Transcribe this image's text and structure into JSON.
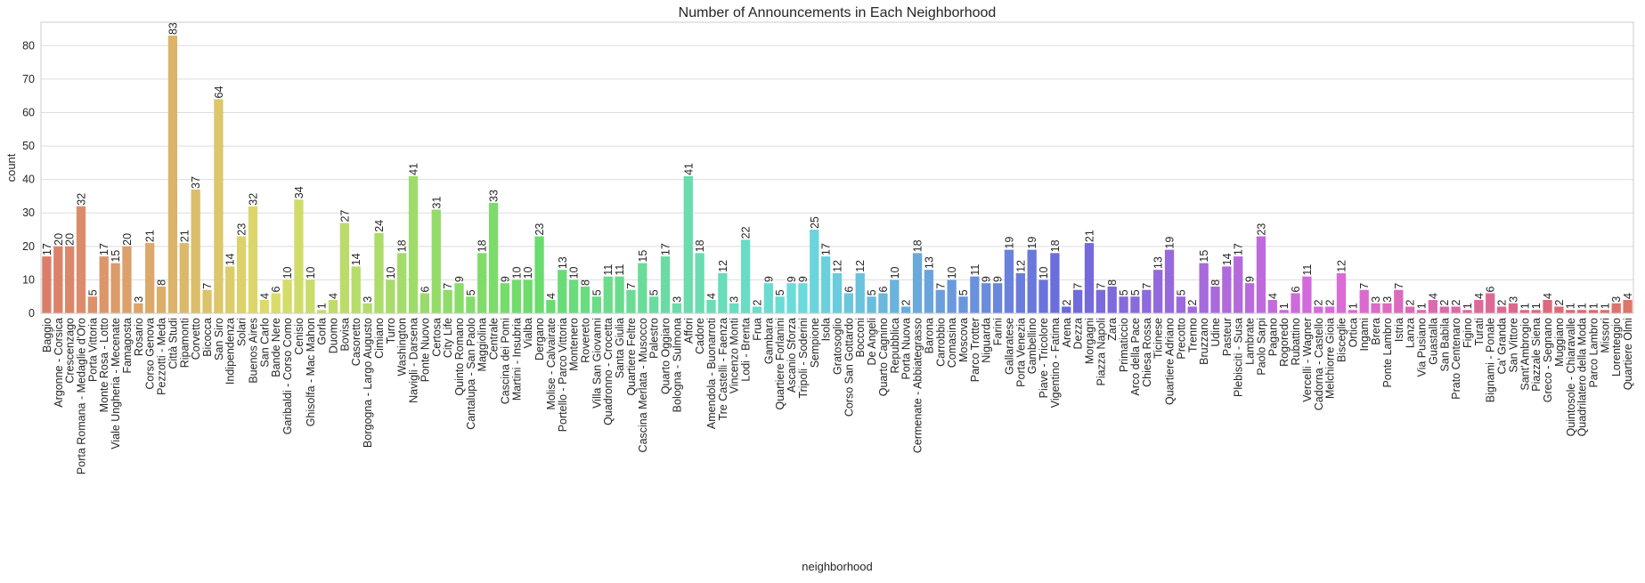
{
  "chart_data": {
    "type": "bar",
    "title": "Number of Announcements in Each Neighborhood",
    "xlabel": "neighborhood",
    "ylabel": "count",
    "ylim": [
      0,
      87
    ],
    "yticks": [
      0,
      10,
      20,
      30,
      40,
      50,
      60,
      70,
      80
    ],
    "grid": "horizontal",
    "style": "seaborn-whitegrid",
    "bar_labels": true,
    "colormap": "husl",
    "categories": [
      "Baggio",
      "Argonne - Corsica",
      "Crescenzago",
      "Porta Romana - Medaglie d'Oro",
      "Porta Vittoria",
      "Monte Rosa - Lotto",
      "Viale Ungheria - Mecenate",
      "Famagosta",
      "Rosario",
      "Corso Genova",
      "Pezzotti - Meda",
      "Città Studi",
      "Ripamonti",
      "Corvetto",
      "Bicocca",
      "San Siro",
      "Indipendenza",
      "Solari",
      "Buenos Aires",
      "San Carlo",
      "Bande Nere",
      "Garibaldi - Corso Como",
      "Cenisio",
      "Ghisolfa - Mac Mahon",
      "Gorla",
      "Duomo",
      "Bovisa",
      "Casoretto",
      "Borgogna - Largo Augusto",
      "Cimiano",
      "Turro",
      "Washington",
      "Navigli - Darsena",
      "Ponte Nuovo",
      "Certosa",
      "City Life",
      "Quinto Romano",
      "Cantalupa - San Paolo",
      "Maggiolina",
      "Centrale",
      "Cascina dei Pomi",
      "Martini - Insubria",
      "Vialba",
      "Dergano",
      "Molise - Calvairate",
      "Portello - Parco Vittoria",
      "Montenero",
      "Rovereto",
      "Villa San Giovanni",
      "Quadronno - Crocetta",
      "Santa Giulia",
      "Quartiere Feltre",
      "Cascina Merlata - Musocco",
      "Palestro",
      "Quarto Oggiaro",
      "Bologna - Sulmona",
      "Affori",
      "Cadore",
      "Amendola - Buonarroti",
      "Tre Castelli - Faenza",
      "Vincenzo Monti",
      "Lodi - Brenta",
      "Frua",
      "Gambara",
      "Quartiere Forlanini",
      "Ascanio Sforza",
      "Tripoli - Soderini",
      "Sempione",
      "Isola",
      "Gratosoglio",
      "Corso San Gottardo",
      "Bocconi",
      "De Angeli",
      "Quarto Cagnino",
      "Repubblica",
      "Porta Nuova",
      "Cermenate - Abbiategrasso",
      "Barona",
      "Carrobbio",
      "Comasina",
      "Moscova",
      "Parco Trotter",
      "Niguarda",
      "Farini",
      "Gallaratese",
      "Porta Venezia",
      "Gambellino",
      "Piave - Tricolore",
      "Vigentino - Fatima",
      "Arena",
      "Dezza",
      "Morgagni",
      "Piazza Napoli",
      "Zara",
      "Primaticcio",
      "Arco della Pace",
      "Chiesa Rossa",
      "Ticinese",
      "Quartiere Adriano",
      "Precotto",
      "Trenno",
      "Bruzzano",
      "Udine",
      "Pasteur",
      "Plebisciti - Susa",
      "Lambrate",
      "Paolo Sarpi",
      "Pagano",
      "Rogoredo",
      "Rubattino",
      "Vercelli - Wagner",
      "Cadorna - Castello",
      "Melchiorre Gioia",
      "Bisceglie",
      "Ortica",
      "Ingami",
      "Brera",
      "Ponte Lambro",
      "Istria",
      "Lanza",
      "Via Pusiano",
      "Guastalla",
      "San Babila",
      "Prato Centenaro",
      "Figino",
      "Turati",
      "Bignami - Ponale",
      "Ca' Granda",
      "San Vittore",
      "Sant'Ambrogio",
      "Piazzale Siena",
      "Greco - Segnano",
      "Muggiano",
      "Quintosole - Chiaravalle",
      "Quadrilatero della Moda",
      "Parco Lambro",
      "Missori",
      "Lorenteggio",
      "Quartiere Olmi"
    ],
    "values": [
      17,
      20,
      20,
      32,
      5,
      17,
      15,
      20,
      3,
      21,
      8,
      83,
      21,
      37,
      7,
      64,
      14,
      23,
      32,
      4,
      6,
      10,
      34,
      10,
      1,
      4,
      27,
      14,
      3,
      24,
      10,
      18,
      41,
      6,
      31,
      7,
      9,
      5,
      18,
      33,
      9,
      10,
      10,
      23,
      4,
      13,
      10,
      8,
      5,
      11,
      11,
      7,
      15,
      5,
      17,
      3,
      41,
      18,
      4,
      12,
      3,
      22,
      2,
      9,
      5,
      9,
      9,
      25,
      17,
      12,
      6,
      12,
      5,
      6,
      10,
      2,
      18,
      13,
      7,
      10,
      5,
      11,
      9,
      9,
      19,
      12,
      19,
      10,
      18,
      2,
      7,
      21,
      7,
      8,
      5,
      5,
      7,
      13,
      19,
      5,
      2,
      15,
      8,
      14,
      17,
      9,
      23,
      4,
      1,
      6,
      11,
      2,
      2,
      12,
      1,
      7,
      3,
      3,
      7,
      2,
      1,
      4,
      2,
      2,
      1,
      4,
      6,
      2,
      3,
      1,
      1,
      4,
      2,
      1,
      1,
      1,
      1,
      3,
      4
    ]
  }
}
